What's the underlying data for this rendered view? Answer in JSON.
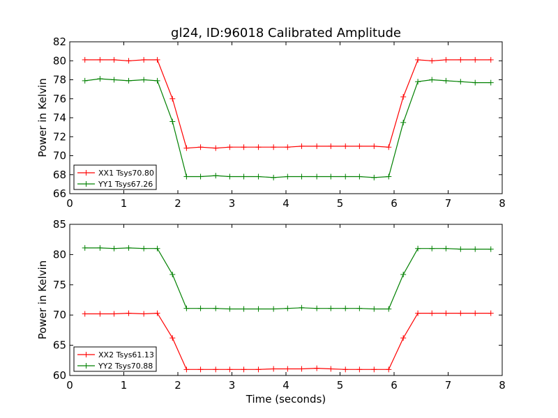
{
  "figure": {
    "title": "gl24, ID:96018 Calibrated Amplitude",
    "xlabel": "Time (seconds)"
  },
  "chart_data": [
    {
      "type": "line",
      "title": "gl24, ID:96018 Calibrated Amplitude",
      "xlabel": "",
      "ylabel": "Power in Kelvin",
      "xlim": [
        0,
        8
      ],
      "ylim": [
        66,
        82
      ],
      "xticks": [
        "0",
        "1",
        "2",
        "3",
        "4",
        "5",
        "6",
        "7",
        "8"
      ],
      "yticks": [
        "66",
        "68",
        "70",
        "72",
        "74",
        "76",
        "78",
        "80",
        "82"
      ],
      "grid": false,
      "legend_position": "lower-left",
      "x": [
        0.28,
        0.56,
        0.82,
        1.09,
        1.37,
        1.62,
        1.9,
        2.16,
        2.42,
        2.7,
        2.96,
        3.22,
        3.49,
        3.77,
        4.03,
        4.29,
        4.57,
        4.83,
        5.1,
        5.36,
        5.63,
        5.9,
        6.17,
        6.44,
        6.7,
        6.96,
        7.23,
        7.5,
        7.79
      ],
      "series": [
        {
          "name": "XX1 Tsys70.80",
          "color": "#ff0000",
          "values": [
            80.1,
            80.1,
            80.1,
            80.0,
            80.1,
            80.1,
            76.0,
            70.8,
            70.9,
            70.8,
            70.9,
            70.9,
            70.9,
            70.9,
            70.9,
            71.0,
            71.0,
            71.0,
            71.0,
            71.0,
            71.0,
            70.9,
            76.2,
            80.1,
            80.0,
            80.1,
            80.1,
            80.1,
            80.1
          ]
        },
        {
          "name": "YY1 Tsys67.26",
          "color": "#008000",
          "values": [
            77.9,
            78.1,
            78.0,
            77.9,
            78.0,
            77.9,
            73.6,
            67.8,
            67.8,
            67.9,
            67.8,
            67.8,
            67.8,
            67.7,
            67.8,
            67.8,
            67.8,
            67.8,
            67.8,
            67.8,
            67.7,
            67.8,
            73.5,
            77.8,
            78.0,
            77.9,
            77.8,
            77.7,
            77.7
          ]
        }
      ]
    },
    {
      "type": "line",
      "title": "",
      "xlabel": "Time (seconds)",
      "ylabel": "Power in Kelvin",
      "xlim": [
        0,
        8
      ],
      "ylim": [
        60,
        85
      ],
      "xticks": [
        "0",
        "1",
        "2",
        "3",
        "4",
        "5",
        "6",
        "7",
        "8"
      ],
      "yticks": [
        "60",
        "65",
        "70",
        "75",
        "80",
        "85"
      ],
      "grid": false,
      "legend_position": "lower-left",
      "x": [
        0.28,
        0.56,
        0.82,
        1.09,
        1.37,
        1.62,
        1.9,
        2.16,
        2.42,
        2.7,
        2.96,
        3.22,
        3.49,
        3.77,
        4.03,
        4.29,
        4.57,
        4.83,
        5.1,
        5.36,
        5.63,
        5.9,
        6.17,
        6.44,
        6.7,
        6.96,
        7.23,
        7.5,
        7.79
      ],
      "series": [
        {
          "name": "XX2 Tsys61.13",
          "color": "#ff0000",
          "values": [
            70.2,
            70.2,
            70.2,
            70.3,
            70.2,
            70.3,
            66.2,
            61.0,
            61.0,
            61.0,
            61.0,
            61.0,
            61.0,
            61.1,
            61.1,
            61.1,
            61.2,
            61.1,
            61.0,
            61.0,
            61.0,
            61.0,
            66.2,
            70.3,
            70.3,
            70.3,
            70.3,
            70.3,
            70.3
          ]
        },
        {
          "name": "YY2 Tsys70.88",
          "color": "#008000",
          "values": [
            81.1,
            81.1,
            81.0,
            81.1,
            81.0,
            81.0,
            76.7,
            71.1,
            71.1,
            71.1,
            71.0,
            71.0,
            71.0,
            71.0,
            71.1,
            71.2,
            71.1,
            71.1,
            71.1,
            71.1,
            71.0,
            71.0,
            76.7,
            81.0,
            81.0,
            81.0,
            80.9,
            80.9,
            80.9
          ]
        }
      ]
    }
  ]
}
